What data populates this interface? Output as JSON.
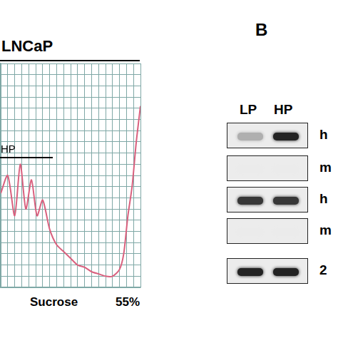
{
  "chart_data": {
    "type": "line",
    "title": "LNCaP",
    "x": [
      0,
      5,
      10,
      14,
      18,
      22,
      26,
      30,
      35,
      40,
      45,
      50,
      55,
      60,
      65,
      70,
      75,
      80,
      85,
      88,
      91,
      94,
      97,
      100
    ],
    "values": [
      42,
      50,
      32,
      55,
      35,
      48,
      32,
      39,
      26,
      19,
      16,
      13,
      10,
      9,
      7,
      6,
      5,
      5,
      8,
      15,
      32,
      45,
      65,
      81
    ],
    "color": "#d9607e",
    "xlim": [
      0,
      100
    ],
    "ylim": [
      0,
      100
    ],
    "xticks": [
      0,
      5,
      10,
      15,
      20,
      25,
      30,
      35,
      40,
      45,
      50,
      55,
      60,
      65,
      70,
      75,
      80,
      85,
      90,
      95,
      100
    ],
    "yticks": [
      0,
      5,
      10,
      15,
      20,
      25,
      30,
      35,
      40,
      45,
      50,
      55,
      60,
      65,
      70,
      75,
      80,
      85,
      90,
      95,
      100
    ],
    "grid": true,
    "tick_labels": false,
    "annotations": [
      "HP",
      "Sucrose",
      "55%"
    ]
  },
  "panel_b": {
    "label": "B",
    "lanes": [
      "LP",
      "HP"
    ],
    "rows": [
      {
        "label": "h",
        "intensity": [
          0.3,
          1
        ]
      },
      {
        "label": "m",
        "intensity": [
          0,
          0
        ]
      },
      {
        "label": "h",
        "intensity": [
          0.9,
          0.9
        ]
      },
      {
        "label": "m",
        "intensity": [
          0,
          0
        ]
      },
      {
        "label": "2",
        "intensity": [
          1,
          1
        ]
      }
    ]
  }
}
